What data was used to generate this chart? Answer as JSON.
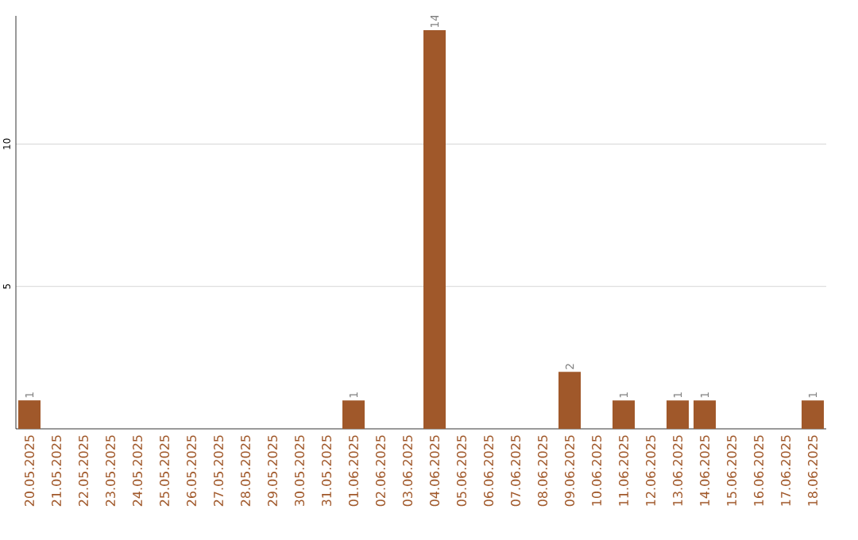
{
  "chart_data": {
    "type": "bar",
    "categories": [
      "20.05.2025",
      "21.05.2025",
      "22.05.2025",
      "23.05.2025",
      "24.05.2025",
      "25.05.2025",
      "26.05.2025",
      "27.05.2025",
      "28.05.2025",
      "29.05.2025",
      "30.05.2025",
      "31.05.2025",
      "01.06.2025",
      "02.06.2025",
      "03.06.2025",
      "04.06.2025",
      "05.06.2025",
      "06.06.2025",
      "07.06.2025",
      "08.06.2025",
      "09.06.2025",
      "10.06.2025",
      "11.06.2025",
      "12.06.2025",
      "13.06.2025",
      "14.06.2025",
      "15.06.2025",
      "16.06.2025",
      "17.06.2025",
      "18.06.2025"
    ],
    "values": [
      1,
      0,
      0,
      0,
      0,
      0,
      0,
      0,
      0,
      0,
      0,
      0,
      1,
      0,
      0,
      14,
      0,
      0,
      0,
      0,
      2,
      0,
      1,
      0,
      1,
      1,
      0,
      0,
      0,
      1
    ],
    "value_labels": [
      "1",
      null,
      null,
      null,
      null,
      null,
      null,
      null,
      null,
      null,
      null,
      null,
      "1",
      null,
      null,
      "14",
      null,
      null,
      null,
      null,
      "2",
      null,
      "1",
      null,
      "1",
      "1",
      null,
      null,
      null,
      "1"
    ],
    "color": "#a0582a",
    "ylim": [
      0,
      14.5
    ],
    "yticks": [
      5,
      10
    ],
    "grid": "y"
  }
}
